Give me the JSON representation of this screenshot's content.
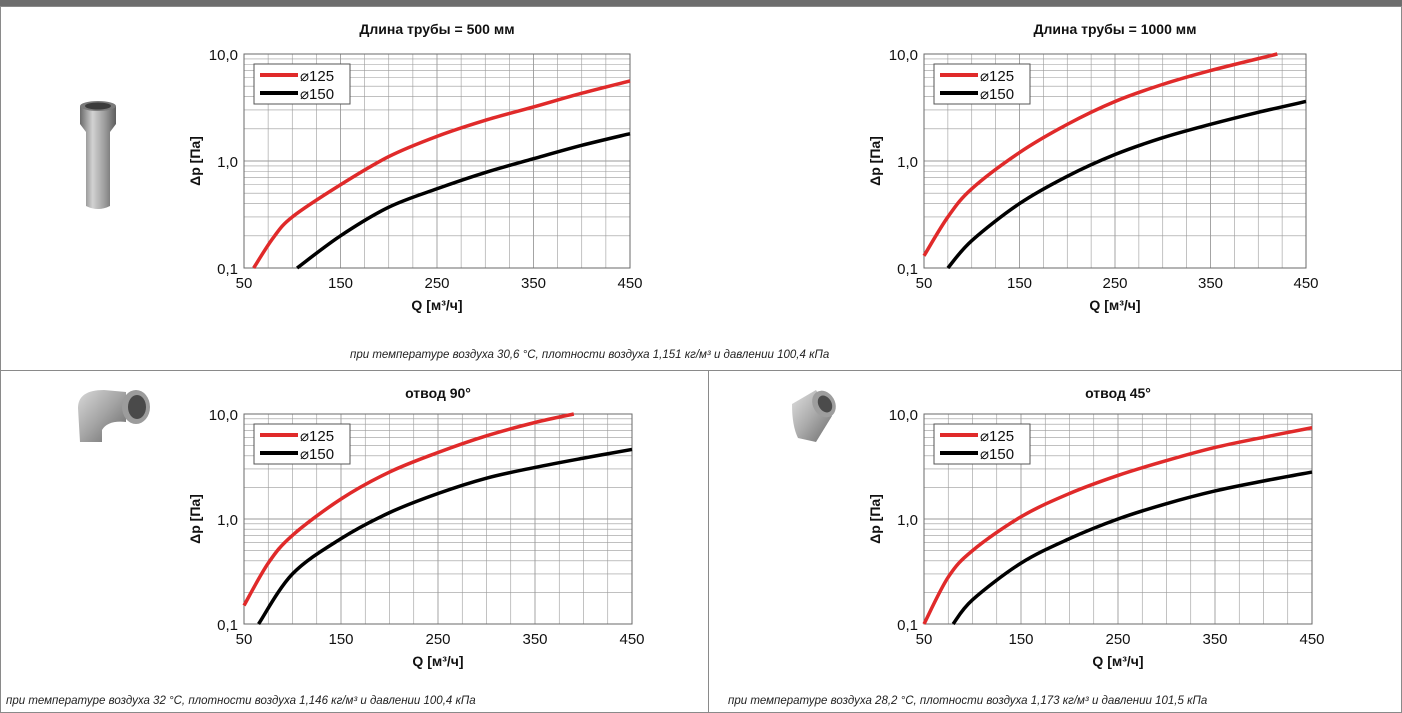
{
  "captions": {
    "top": "при температуре воздуха 30,6 °С, плотности воздуха 1,151 кг/м³ и давлении 100,4 кПа",
    "bottom_left": "при температуре воздуха 32 °С, плотности воздуха 1,146 кг/м³ и давлении 100,4 кПа",
    "bottom_right": "при температуре воздуха 28,2 °С, плотности воздуха 1,173 кг/м³ и давлении 101,5 кПа"
  },
  "colors": {
    "d125": "#e02a2a",
    "d150": "#000000",
    "grid": "#9a9a9a",
    "frame": "#8a8a8a"
  },
  "icons": [
    "pipe-fitting-icon",
    "elbow-90-icon",
    "elbow-45-icon"
  ],
  "chart_data": [
    {
      "type": "line",
      "title": "Длина трубы = 500 мм",
      "xlabel": "Q [м³/ч]",
      "ylabel": "Δp [Па]",
      "xlim": [
        50,
        450
      ],
      "ylim": [
        0.1,
        10
      ],
      "yscale": "log",
      "grid": true,
      "legend": "top-left",
      "xticks": [
        "50",
        "150",
        "250",
        "350",
        "450"
      ],
      "yticks": [
        "0,1",
        "1,0",
        "10,0"
      ],
      "series": [
        {
          "name": "⌀125",
          "x": [
            60,
            80,
            100,
            150,
            200,
            250,
            300,
            350,
            400,
            450
          ],
          "y": [
            0.1,
            0.19,
            0.3,
            0.6,
            1.1,
            1.7,
            2.4,
            3.2,
            4.3,
            5.6
          ]
        },
        {
          "name": "⌀150",
          "x": [
            105,
            150,
            200,
            250,
            300,
            350,
            400,
            450
          ],
          "y": [
            0.1,
            0.2,
            0.37,
            0.55,
            0.78,
            1.05,
            1.4,
            1.8
          ]
        }
      ]
    },
    {
      "type": "line",
      "title": "Длина трубы = 1000 мм",
      "xlabel": "Q [м³/ч]",
      "ylabel": "Δp [Па]",
      "xlim": [
        50,
        450
      ],
      "ylim": [
        0.1,
        10
      ],
      "yscale": "log",
      "grid": true,
      "legend": "top-left",
      "xticks": [
        "50",
        "150",
        "250",
        "350",
        "450"
      ],
      "yticks": [
        "0,1",
        "1,0",
        "10,0"
      ],
      "series": [
        {
          "name": "⌀125",
          "x": [
            50,
            75,
            100,
            150,
            200,
            250,
            300,
            350,
            420
          ],
          "y": [
            0.13,
            0.3,
            0.55,
            1.2,
            2.2,
            3.6,
            5.2,
            7.0,
            10.0
          ]
        },
        {
          "name": "⌀150",
          "x": [
            75,
            100,
            150,
            200,
            250,
            300,
            350,
            400,
            450
          ],
          "y": [
            0.1,
            0.18,
            0.4,
            0.72,
            1.15,
            1.65,
            2.2,
            2.85,
            3.6
          ]
        }
      ]
    },
    {
      "type": "line",
      "title": "отвод 90°",
      "xlabel": "Q [м³/ч]",
      "ylabel": "Δp [Па]",
      "xlim": [
        50,
        450
      ],
      "ylim": [
        0.1,
        10
      ],
      "yscale": "log",
      "grid": true,
      "legend": "top-left",
      "xticks": [
        "50",
        "150",
        "250",
        "350",
        "450"
      ],
      "yticks": [
        "0,1",
        "1,0",
        "10,0"
      ],
      "series": [
        {
          "name": "⌀125",
          "x": [
            50,
            75,
            100,
            150,
            200,
            250,
            300,
            350,
            390
          ],
          "y": [
            0.15,
            0.38,
            0.7,
            1.55,
            2.8,
            4.3,
            6.2,
            8.3,
            10.0
          ]
        },
        {
          "name": "⌀150",
          "x": [
            65,
            100,
            150,
            200,
            250,
            300,
            350,
            400,
            450
          ],
          "y": [
            0.1,
            0.3,
            0.65,
            1.15,
            1.75,
            2.45,
            3.1,
            3.8,
            4.6
          ]
        }
      ]
    },
    {
      "type": "line",
      "title": "отвод 45°",
      "xlabel": "Q [м³/ч]",
      "ylabel": "Δp [Па]",
      "xlim": [
        50,
        450
      ],
      "ylim": [
        0.1,
        10
      ],
      "yscale": "log",
      "grid": true,
      "legend": "top-left",
      "xticks": [
        "50",
        "150",
        "250",
        "350",
        "450"
      ],
      "yticks": [
        "0,1",
        "1,0",
        "10,0"
      ],
      "series": [
        {
          "name": "⌀125",
          "x": [
            50,
            75,
            100,
            150,
            200,
            250,
            300,
            350,
            400,
            450
          ],
          "y": [
            0.1,
            0.28,
            0.5,
            1.05,
            1.75,
            2.6,
            3.6,
            4.8,
            6.0,
            7.4
          ]
        },
        {
          "name": "⌀150",
          "x": [
            80,
            100,
            150,
            200,
            250,
            300,
            350,
            400,
            450
          ],
          "y": [
            0.1,
            0.17,
            0.38,
            0.65,
            1.0,
            1.4,
            1.85,
            2.3,
            2.8
          ]
        }
      ]
    }
  ]
}
